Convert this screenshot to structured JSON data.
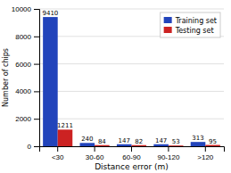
{
  "chart_data": {
    "type": "bar",
    "categories": [
      "<30",
      "30-60",
      "60-90",
      "90-120",
      ">120"
    ],
    "series": [
      {
        "name": "Training set",
        "color": "#2244bb",
        "values": [
          9410,
          240,
          147,
          147,
          313
        ]
      },
      {
        "name": "Testing set",
        "color": "#cc2222",
        "values": [
          1211,
          84,
          82,
          53,
          95
        ]
      }
    ],
    "xlabel": "Distance error (m)",
    "ylabel": "Number of chips",
    "ylim": [
      0,
      10000
    ],
    "yticks": [
      0,
      2000,
      4000,
      6000,
      8000,
      10000
    ],
    "grid": true,
    "legend": "upper right",
    "data_labels": true
  }
}
